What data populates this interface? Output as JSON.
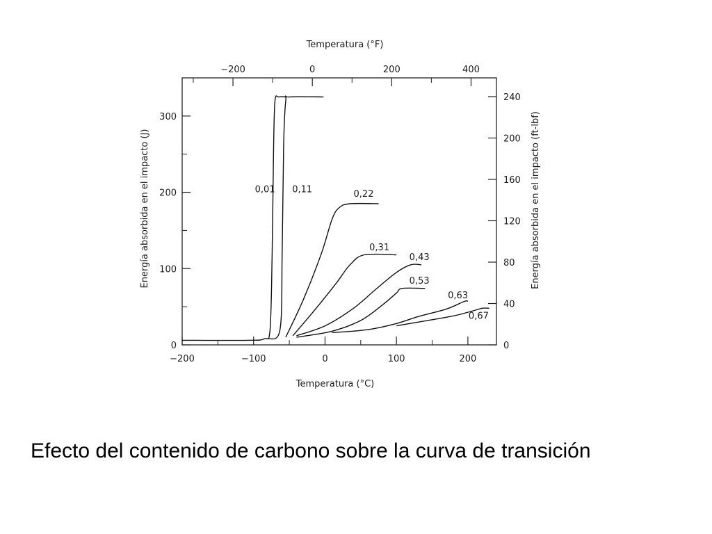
{
  "caption": "Efecto del contenido de carbono sobre la curva de transición",
  "chart_data": {
    "type": "line",
    "x_bottom": {
      "label": "Temperatura (°C)",
      "range": [
        -200,
        240
      ],
      "ticks": [
        -200,
        -100,
        0,
        100,
        200
      ],
      "tick_labels": [
        "−200",
        "−100",
        "0",
        "100",
        "200"
      ]
    },
    "x_top": {
      "label": "Temperatura (°F)",
      "ticks": [
        -200,
        0,
        200,
        400
      ],
      "tick_labels": [
        "−200",
        "0",
        "200",
        "400"
      ]
    },
    "y_left": {
      "label": "Energía absorbida en el impacto (J)",
      "range": [
        0,
        350
      ],
      "ticks": [
        0,
        100,
        200,
        300
      ],
      "tick_labels": [
        "0",
        "100",
        "200",
        "300"
      ]
    },
    "y_right": {
      "label": "Energía absorbida en el impacto (ft-lbf)",
      "ticks": [
        0,
        40,
        80,
        120,
        160,
        200,
        240
      ],
      "tick_labels": [
        "0",
        "40",
        "80",
        "120",
        "160",
        "200",
        "240"
      ]
    },
    "series": [
      {
        "name": "0,01",
        "points": [
          [
            -200,
            6
          ],
          [
            -110,
            6
          ],
          [
            -85,
            8
          ],
          [
            -77,
            20
          ],
          [
            -74,
            120
          ],
          [
            -72,
            260
          ],
          [
            -70,
            320
          ],
          [
            -65,
            325
          ],
          [
            -55,
            325
          ]
        ]
      },
      {
        "name": "0,11",
        "points": [
          [
            -80,
            8
          ],
          [
            -63,
            20
          ],
          [
            -60,
            120
          ],
          [
            -58,
            260
          ],
          [
            -55,
            320
          ],
          [
            -50,
            325
          ],
          [
            -2,
            325
          ]
        ]
      },
      {
        "name": "0,22",
        "points": [
          [
            -55,
            10
          ],
          [
            -30,
            60
          ],
          [
            -5,
            120
          ],
          [
            10,
            165
          ],
          [
            20,
            180
          ],
          [
            35,
            185
          ],
          [
            75,
            185
          ]
        ]
      },
      {
        "name": "0,31",
        "points": [
          [
            -45,
            12
          ],
          [
            -15,
            45
          ],
          [
            15,
            80
          ],
          [
            35,
            105
          ],
          [
            55,
            118
          ],
          [
            100,
            118
          ]
        ]
      },
      {
        "name": "0,43",
        "points": [
          [
            -40,
            12
          ],
          [
            0,
            25
          ],
          [
            40,
            48
          ],
          [
            70,
            72
          ],
          [
            100,
            95
          ],
          [
            120,
            105
          ],
          [
            135,
            105
          ]
        ]
      },
      {
        "name": "0,53",
        "points": [
          [
            -40,
            10
          ],
          [
            10,
            18
          ],
          [
            50,
            32
          ],
          [
            80,
            52
          ],
          [
            100,
            68
          ],
          [
            108,
            74
          ],
          [
            140,
            74
          ]
        ]
      },
      {
        "name": "0,63",
        "points": [
          [
            10,
            16
          ],
          [
            60,
            20
          ],
          [
            100,
            28
          ],
          [
            130,
            37
          ],
          [
            170,
            47
          ],
          [
            195,
            57
          ],
          [
            200,
            57
          ]
        ]
      },
      {
        "name": "0,67",
        "points": [
          [
            100,
            25
          ],
          [
            150,
            33
          ],
          [
            180,
            38
          ],
          [
            205,
            44
          ],
          [
            220,
            48
          ],
          [
            230,
            48
          ]
        ]
      }
    ]
  }
}
